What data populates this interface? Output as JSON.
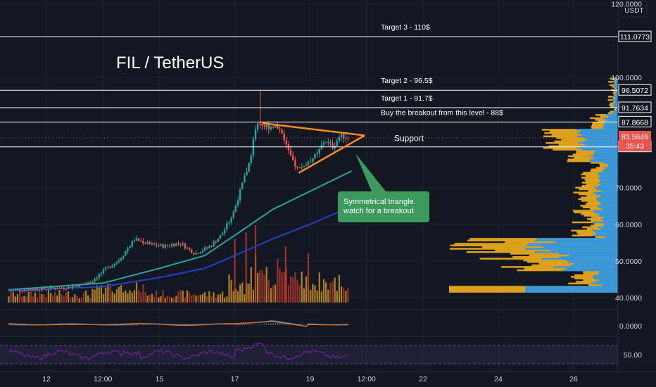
{
  "chart_data": {
    "type": "candlestick",
    "title": "FIL / TetherUS",
    "currency": "USDT",
    "price_axis": {
      "ylim": [
        40,
        120
      ],
      "ticks": [
        {
          "value": 40,
          "label": "40.0000"
        },
        {
          "value": 50,
          "label": "50.0000"
        },
        {
          "value": 60,
          "label": "60.0000"
        },
        {
          "value": 70,
          "label": "70.0000"
        },
        {
          "value": 100,
          "label": "100.0000"
        },
        {
          "value": 120,
          "label": "120.0000"
        }
      ]
    },
    "time_axis": {
      "labels": [
        {
          "label": "12",
          "day": 12.0
        },
        {
          "label": "12:00",
          "day": 13.5
        },
        {
          "label": "15",
          "day": 15.0
        },
        {
          "label": "17",
          "day": 17.0
        },
        {
          "label": "19",
          "day": 19.0
        },
        {
          "label": "12:00",
          "day": 20.5
        },
        {
          "label": "22",
          "day": 22.0
        },
        {
          "label": "24",
          "day": 24.0
        },
        {
          "label": "26",
          "day": 26.0
        }
      ]
    },
    "price_path": [
      [
        11.0,
        42.0
      ],
      [
        11.8,
        42.3
      ],
      [
        12.6,
        42.8
      ],
      [
        13.2,
        44.0
      ],
      [
        13.6,
        47.5
      ],
      [
        14.0,
        50.5
      ],
      [
        14.4,
        56.0
      ],
      [
        14.8,
        54.5
      ],
      [
        15.2,
        54.0
      ],
      [
        15.6,
        55.0
      ],
      [
        16.0,
        52.0
      ],
      [
        16.4,
        54.0
      ],
      [
        16.7,
        57.0
      ],
      [
        17.0,
        62.5
      ],
      [
        17.2,
        69.0
      ],
      [
        17.45,
        77.0
      ],
      [
        17.65,
        88.0
      ],
      [
        17.9,
        86.5
      ],
      [
        18.1,
        87.0
      ],
      [
        18.3,
        85.5
      ],
      [
        18.55,
        78.0
      ],
      [
        18.75,
        75.0
      ],
      [
        19.0,
        77.0
      ],
      [
        19.25,
        79.0
      ],
      [
        19.45,
        83.0
      ],
      [
        19.65,
        81.0
      ],
      [
        19.85,
        84.0
      ],
      [
        20.05,
        83.6
      ]
    ],
    "moving_averages": [
      {
        "color": "#26a69a",
        "points": [
          [
            11,
            42.2
          ],
          [
            13.5,
            44.0
          ],
          [
            15,
            48.0
          ],
          [
            16.2,
            51.5
          ],
          [
            17.0,
            57.0
          ],
          [
            18.0,
            64.0
          ],
          [
            19.0,
            69.0
          ],
          [
            20.1,
            74.5
          ]
        ]
      },
      {
        "color": "#2340c8",
        "points": [
          [
            11,
            42.0
          ],
          [
            13.5,
            43.0
          ],
          [
            15,
            45.5
          ],
          [
            16.2,
            48.0
          ],
          [
            17.0,
            51.5
          ],
          [
            18.0,
            56.0
          ],
          [
            19.0,
            60.0
          ],
          [
            19.9,
            64.0
          ]
        ]
      }
    ],
    "horizontal_levels": [
      {
        "price": 111.0773,
        "label": "111.0773",
        "note": "Target 3 - 110$"
      },
      {
        "price": 96.5072,
        "label": "96.5072",
        "note": "Target 2 - 96.5$"
      },
      {
        "price": 91.7634,
        "label": "91.7634",
        "note": "Target 1 - 91.7$"
      },
      {
        "price": 87.8668,
        "label": "87.8668",
        "note": "Buy the breakout from this level - 88$"
      },
      {
        "price": 81.0931,
        "label": "81.0931",
        "note": "Support"
      }
    ],
    "current_price": {
      "value": 83.5649,
      "label": "83.5649",
      "countdown": "35:43"
    },
    "triangle": {
      "upper": [
        [
          17.75,
          87.5
        ],
        [
          20.45,
          84.2
        ]
      ],
      "lower": [
        [
          18.7,
          74.0
        ],
        [
          20.45,
          84.2
        ]
      ]
    },
    "callout": {
      "text_line1": "Symmetrical triangle.",
      "text_line2": "watch for a breakout"
    },
    "macd_axis": {
      "labels": [
        {
          "value": 0,
          "label": "0.0000"
        }
      ]
    },
    "rsi_axis": {
      "labels": [
        {
          "value": 50,
          "label": "50.00"
        }
      ]
    },
    "colors": {
      "up": "#26a69a",
      "down": "#ef5350",
      "triangle": "#ff8c1a",
      "callout": "#3c9a5f",
      "level_line": "#ffffff",
      "volume_profile_in": "#2196f3",
      "volume_profile_out": "#f5b01c",
      "rsi": "#7b1fa2",
      "price_badge": "#ef5350"
    }
  }
}
